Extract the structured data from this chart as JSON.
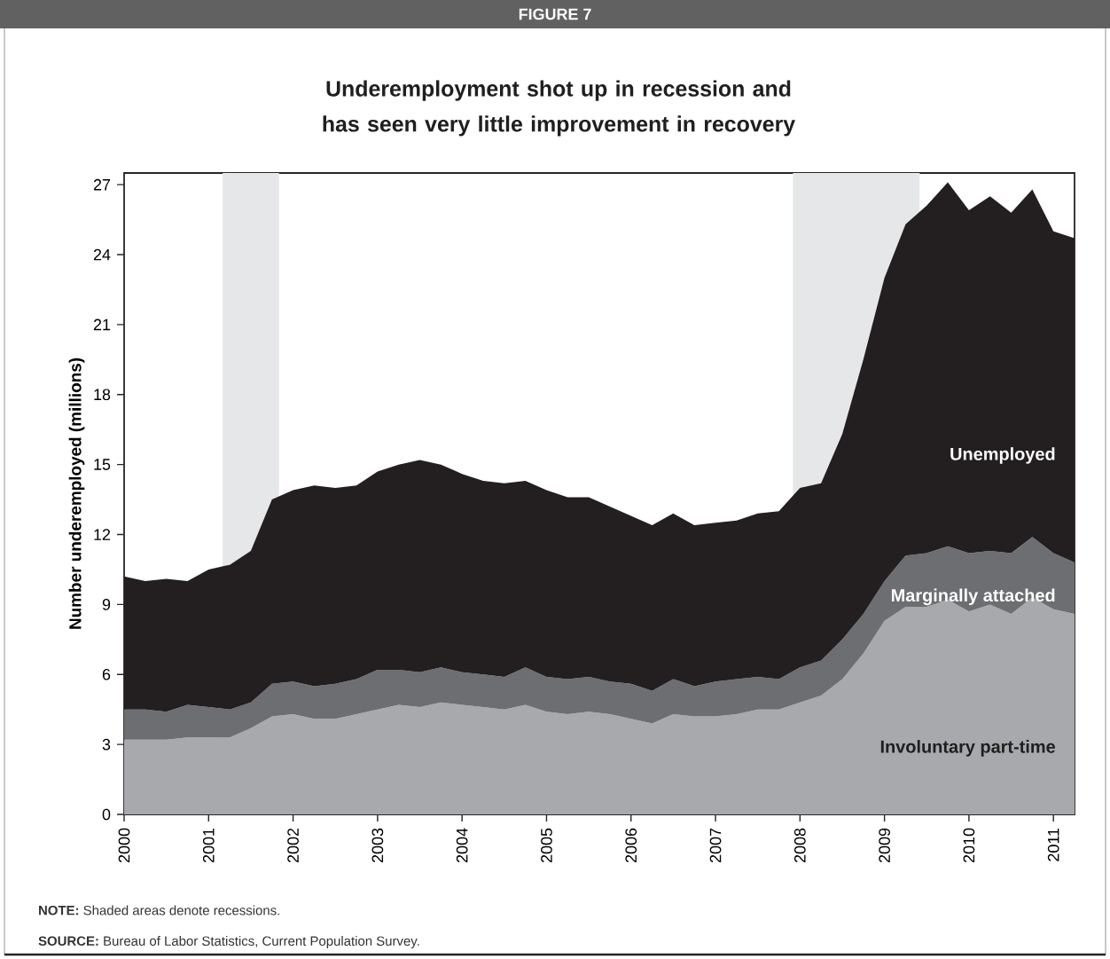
{
  "chart_data": {
    "type": "area",
    "stacked": true,
    "title": "Underemployment  shot up in recession and has seen very little improvement in recovery",
    "ylabel": "Number underemployed (millions)",
    "x": [
      "2000-01",
      "2000-04",
      "2000-07",
      "2000-10",
      "2001-01",
      "2001-04",
      "2001-07",
      "2001-10",
      "2002-01",
      "2002-04",
      "2002-07",
      "2002-10",
      "2003-01",
      "2003-04",
      "2003-07",
      "2003-10",
      "2004-01",
      "2004-04",
      "2004-07",
      "2004-10",
      "2005-01",
      "2005-04",
      "2005-07",
      "2005-10",
      "2006-01",
      "2006-04",
      "2006-07",
      "2006-10",
      "2007-01",
      "2007-04",
      "2007-07",
      "2007-10",
      "2008-01",
      "2008-04",
      "2008-07",
      "2008-10",
      "2009-01",
      "2009-04",
      "2009-07",
      "2009-10",
      "2010-01",
      "2010-04",
      "2010-07",
      "2010-10",
      "2011-01",
      "2011-04"
    ],
    "series": [
      {
        "name": "Involuntary part-time",
        "color": "#a7a9ac",
        "values": [
          3.2,
          3.2,
          3.2,
          3.3,
          3.3,
          3.3,
          3.7,
          4.2,
          4.3,
          4.1,
          4.1,
          4.3,
          4.5,
          4.7,
          4.6,
          4.8,
          4.7,
          4.6,
          4.5,
          4.7,
          4.4,
          4.3,
          4.4,
          4.3,
          4.1,
          3.9,
          4.3,
          4.2,
          4.2,
          4.3,
          4.5,
          4.5,
          4.8,
          5.1,
          5.8,
          6.9,
          8.3,
          8.9,
          8.9,
          9.2,
          8.7,
          9.0,
          8.6,
          9.3,
          8.8,
          8.6
        ]
      },
      {
        "name": "Marginally attached",
        "color": "#6d6e71",
        "values": [
          1.3,
          1.3,
          1.2,
          1.4,
          1.3,
          1.2,
          1.1,
          1.4,
          1.4,
          1.4,
          1.5,
          1.5,
          1.7,
          1.5,
          1.5,
          1.5,
          1.4,
          1.4,
          1.4,
          1.6,
          1.5,
          1.5,
          1.5,
          1.4,
          1.5,
          1.4,
          1.5,
          1.3,
          1.5,
          1.5,
          1.4,
          1.3,
          1.5,
          1.5,
          1.7,
          1.7,
          1.7,
          2.2,
          2.3,
          2.3,
          2.5,
          2.3,
          2.6,
          2.6,
          2.4,
          2.2
        ]
      },
      {
        "name": "Unemployed",
        "color": "#231f20",
        "values": [
          5.7,
          5.5,
          5.7,
          5.3,
          5.9,
          6.2,
          6.5,
          7.9,
          8.2,
          8.6,
          8.4,
          8.3,
          8.5,
          8.8,
          9.1,
          8.7,
          8.5,
          8.3,
          8.3,
          8.0,
          8.0,
          7.8,
          7.7,
          7.5,
          7.2,
          7.1,
          7.1,
          6.9,
          6.8,
          6.8,
          7.0,
          7.2,
          7.7,
          7.6,
          8.8,
          10.9,
          13.0,
          14.2,
          14.9,
          15.6,
          14.7,
          15.2,
          14.6,
          14.9,
          13.8,
          13.9
        ]
      }
    ],
    "xlim": [
      "2000-01",
      "2011-04"
    ],
    "xticks": [
      "2000",
      "2001",
      "2002",
      "2003",
      "2004",
      "2005",
      "2006",
      "2007",
      "2008",
      "2009",
      "2010",
      "2011"
    ],
    "ylim": [
      0,
      27.5
    ],
    "yticks": [
      0,
      3,
      6,
      9,
      12,
      15,
      18,
      21,
      24,
      27
    ],
    "bands": [
      {
        "axis": "x",
        "from": "2001-03",
        "to": "2001-11",
        "color": "#e6e7e8"
      },
      {
        "axis": "x",
        "from": "2007-12",
        "to": "2009-06",
        "color": "#e6e7e8"
      }
    ],
    "annotations": [
      "FIGURE 7",
      "**NOTE:** Shaded areas denote recessions.",
      "**SOURCE:** Bureau of Labor Statistics, Current Population Survey."
    ]
  }
}
